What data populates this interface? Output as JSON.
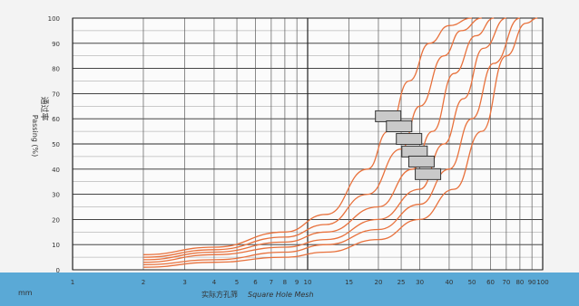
{
  "chart_data": {
    "type": "line",
    "x_scale": "log",
    "xlabel_cn": "实际方孔筛",
    "xlabel_en": "Square Hole Mesh",
    "unit": "mm",
    "ylabel_en": "Passing (%)",
    "ylabel_cn": "通过率",
    "ylim": [
      0,
      100
    ],
    "xlim": [
      1,
      100
    ],
    "y_ticks": [
      0,
      10,
      20,
      30,
      40,
      50,
      60,
      70,
      80,
      90,
      100
    ],
    "y_tick_labels": [
      "0",
      "10",
      "20",
      "30",
      "40",
      "50",
      "60",
      "70",
      "80",
      "90",
      "100"
    ],
    "x_ticks": [
      1,
      2,
      3,
      4,
      5,
      6,
      7,
      8,
      9,
      10,
      15,
      20,
      25,
      30,
      40,
      50,
      60,
      70,
      80,
      90,
      100
    ],
    "x_tick_labels": [
      "1",
      "2",
      "3",
      "4",
      "5",
      "6",
      "7",
      "8",
      "9",
      "10",
      "15",
      "20",
      "25",
      "30",
      "40",
      "50",
      "60",
      "70",
      "80",
      "90",
      "100"
    ],
    "grid": true,
    "band_color": "#5aa9d6",
    "line_color": "#e8713c",
    "series": [
      {
        "points": [
          [
            2,
            6
          ],
          [
            4,
            9
          ],
          [
            8,
            15
          ],
          [
            12,
            22
          ],
          [
            18,
            40
          ],
          [
            22,
            55
          ],
          [
            27,
            75
          ],
          [
            33,
            90
          ],
          [
            40,
            97
          ],
          [
            50,
            100
          ]
        ]
      },
      {
        "points": [
          [
            2,
            5
          ],
          [
            4,
            8
          ],
          [
            8,
            13
          ],
          [
            12,
            18
          ],
          [
            18,
            30
          ],
          [
            25,
            48
          ],
          [
            30,
            65
          ],
          [
            38,
            85
          ],
          [
            45,
            95
          ],
          [
            55,
            100
          ]
        ]
      },
      {
        "points": [
          [
            2,
            4
          ],
          [
            4,
            7
          ],
          [
            8,
            11
          ],
          [
            12,
            15
          ],
          [
            20,
            25
          ],
          [
            28,
            40
          ],
          [
            34,
            55
          ],
          [
            42,
            78
          ],
          [
            52,
            93
          ],
          [
            62,
            100
          ]
        ]
      },
      {
        "points": [
          [
            2,
            3
          ],
          [
            4,
            6
          ],
          [
            8,
            9
          ],
          [
            12,
            12
          ],
          [
            20,
            20
          ],
          [
            30,
            32
          ],
          [
            38,
            50
          ],
          [
            46,
            68
          ],
          [
            56,
            88
          ],
          [
            70,
            100
          ]
        ]
      },
      {
        "points": [
          [
            2,
            2
          ],
          [
            4,
            4
          ],
          [
            8,
            7
          ],
          [
            12,
            10
          ],
          [
            20,
            16
          ],
          [
            30,
            26
          ],
          [
            40,
            40
          ],
          [
            50,
            60
          ],
          [
            62,
            82
          ],
          [
            80,
            100
          ]
        ]
      },
      {
        "points": [
          [
            2,
            1
          ],
          [
            4,
            3
          ],
          [
            8,
            5
          ],
          [
            12,
            7
          ],
          [
            20,
            12
          ],
          [
            30,
            20
          ],
          [
            42,
            32
          ],
          [
            55,
            55
          ],
          [
            70,
            85
          ],
          [
            85,
            98
          ],
          [
            95,
            100
          ]
        ]
      }
    ],
    "annotations": [
      {
        "x": 22,
        "y": 61
      },
      {
        "x": 24.5,
        "y": 57
      },
      {
        "x": 27,
        "y": 52
      },
      {
        "x": 28.5,
        "y": 47
      },
      {
        "x": 30.5,
        "y": 43
      },
      {
        "x": 32.5,
        "y": 38
      }
    ]
  }
}
